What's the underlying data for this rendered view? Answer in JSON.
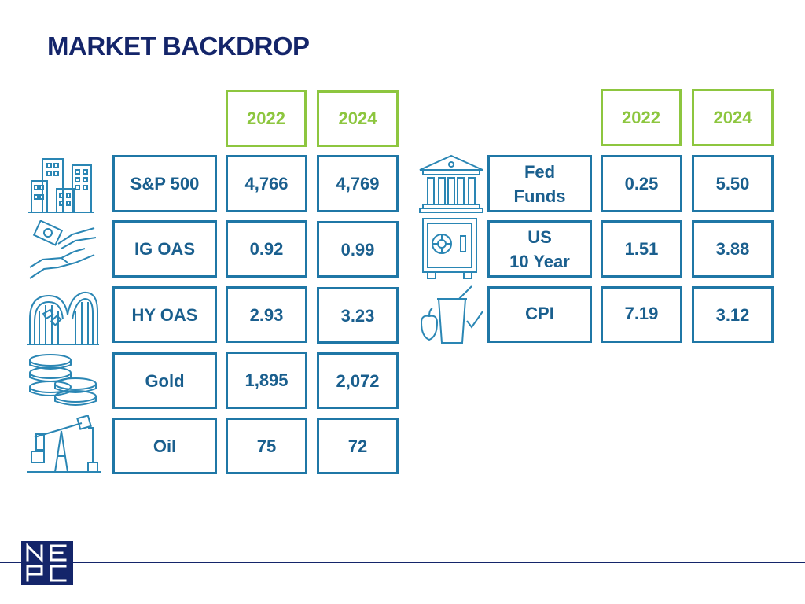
{
  "page": {
    "title": "MARKET BACKDROP"
  },
  "colors": {
    "title": "#14256a",
    "header": "#8dc63f",
    "cell_border": "#1f77a6",
    "cell_text": "#1a5f8e",
    "icon": "#2a86b4"
  },
  "left_table": {
    "year_a": "2022",
    "year_b": "2024",
    "rows": [
      {
        "label": "S&P 500",
        "y2022": "4,766",
        "y2024": "4,769",
        "icon": "city-buildings-icon"
      },
      {
        "label": "IG OAS",
        "y2022": "0.92",
        "y2024": "0.99",
        "icon": "money-hand-icon"
      },
      {
        "label": "HY OAS",
        "y2022": "2.93",
        "y2024": "3.23",
        "icon": "roller-coaster-icon"
      },
      {
        "label": "Gold",
        "y2022": "1,895",
        "y2024": "2,072",
        "icon": "gold-coins-icon"
      },
      {
        "label": "Oil",
        "y2022": "75",
        "y2024": "72",
        "icon": "oil-pump-icon"
      }
    ]
  },
  "right_table": {
    "year_a": "2022",
    "year_b": "2024",
    "rows": [
      {
        "label_line1": "Fed",
        "label_line2": "Funds",
        "y2022": "0.25",
        "y2024": "5.50",
        "icon": "bank-building-icon"
      },
      {
        "label_line1": "US",
        "label_line2": "10 Year",
        "y2022": "1.51",
        "y2024": "3.88",
        "icon": "safe-vault-icon"
      },
      {
        "label_line1": "CPI",
        "label_line2": "",
        "y2022": "7.19",
        "y2024": "3.12",
        "icon": "groceries-checkmark-icon"
      }
    ]
  },
  "footer": {
    "logo_letters": [
      "N",
      "E",
      "P",
      "C"
    ]
  }
}
